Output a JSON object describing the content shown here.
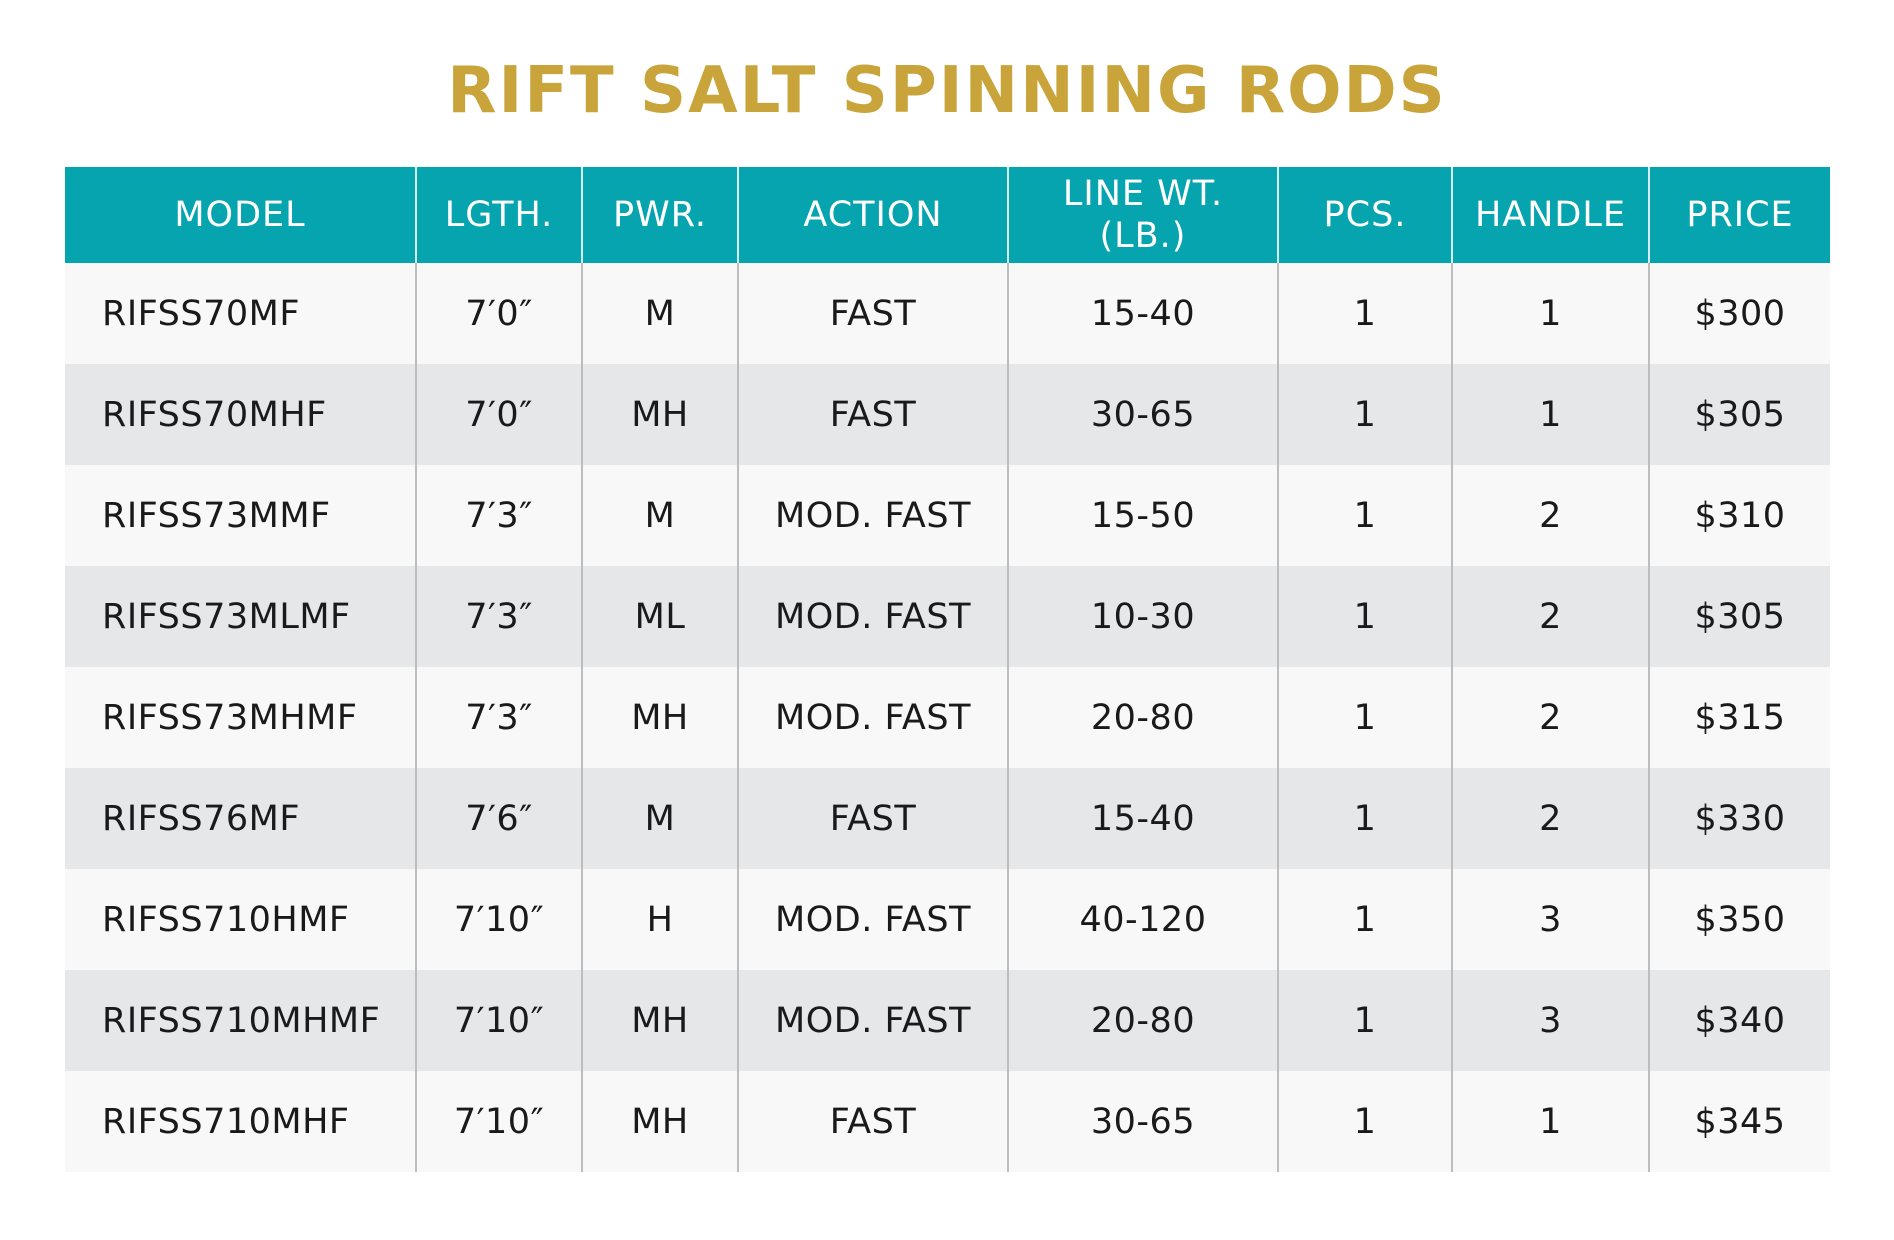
{
  "header": {
    "title": "RIFT SALT SPINNING RODS"
  },
  "table": {
    "columns": [
      "MODEL",
      "LGTH.",
      "PWR.",
      "ACTION",
      "LINE WT. (LB.)",
      "PCS.",
      "HANDLE",
      "PRICE"
    ],
    "rows": [
      [
        "RIFSS70MF",
        "7′0″",
        "M",
        "FAST",
        "15-40",
        "1",
        "1",
        "$300"
      ],
      [
        "RIFSS70MHF",
        "7′0″",
        "MH",
        "FAST",
        "30-65",
        "1",
        "1",
        "$305"
      ],
      [
        "RIFSS73MMF",
        "7′3″",
        "M",
        "MOD. FAST",
        "15-50",
        "1",
        "2",
        "$310"
      ],
      [
        "RIFSS73MLMF",
        "7′3″",
        "ML",
        "MOD. FAST",
        "10-30",
        "1",
        "2",
        "$305"
      ],
      [
        "RIFSS73MHMF",
        "7′3″",
        "MH",
        "MOD. FAST",
        "20-80",
        "1",
        "2",
        "$315"
      ],
      [
        "RIFSS76MF",
        "7′6″",
        "M",
        "FAST",
        "15-40",
        "1",
        "2",
        "$330"
      ],
      [
        "RIFSS710HMF",
        "7′10″",
        "H",
        "MOD. FAST",
        "40-120",
        "1",
        "3",
        "$350"
      ],
      [
        "RIFSS710MHMF",
        "7′10″",
        "MH",
        "MOD. FAST",
        "20-80",
        "1",
        "3",
        "$340"
      ],
      [
        "RIFSS710MHF",
        "7′10″",
        "MH",
        "FAST",
        "30-65",
        "1",
        "1",
        "$345"
      ]
    ]
  }
}
